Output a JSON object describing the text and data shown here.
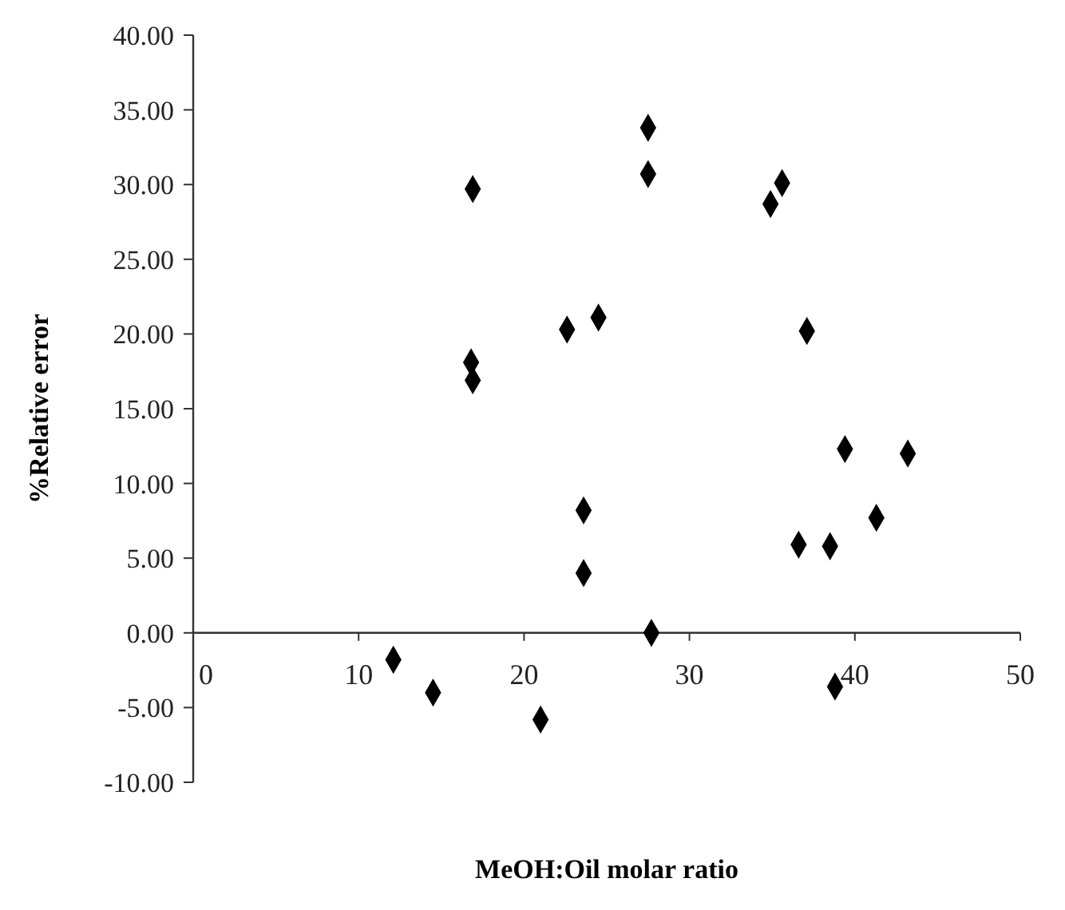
{
  "chart_data": {
    "type": "scatter",
    "xlabel": "MeOH:Oil molar ratio",
    "ylabel": "%Relative error",
    "x": [
      16.9,
      22.6,
      24.5,
      16.8,
      16.9,
      27.5,
      27.5,
      35.6,
      34.9,
      37.1,
      23.6,
      23.6,
      12.1,
      14.5,
      21.0,
      27.7,
      39.4,
      43.2,
      41.3,
      36.6,
      38.5,
      38.8
    ],
    "series": [
      {
        "color": "#000000",
        "values": [
          29.7,
          20.3,
          21.1,
          18.1,
          16.9,
          33.8,
          30.7,
          30.1,
          28.7,
          20.2,
          8.2,
          4.0,
          -1.8,
          -4.0,
          -5.8,
          0,
          12.3,
          12.0,
          7.7,
          5.9,
          5.8,
          -3.6
        ]
      }
    ],
    "marker": "diamond",
    "grid": false,
    "xlim": [
      0,
      50
    ],
    "xticks": [
      0,
      10,
      20,
      30,
      40,
      50
    ],
    "ylim": [
      -10,
      40
    ],
    "yticks": [
      {
        "value": -10,
        "label": "-10.00"
      },
      {
        "value": -5,
        "label": "-5.00"
      },
      {
        "value": 0,
        "label": "0.00"
      },
      {
        "value": 5,
        "label": "5.00"
      },
      {
        "value": 10,
        "label": "10.00"
      },
      {
        "value": 15,
        "label": "15.00"
      },
      {
        "value": 20,
        "label": "20.00"
      },
      {
        "value": 25,
        "label": "25.00"
      },
      {
        "value": 30,
        "label": "30.00"
      },
      {
        "value": 35,
        "label": "35.00"
      },
      {
        "value": 40,
        "label": "40.00"
      }
    ]
  }
}
